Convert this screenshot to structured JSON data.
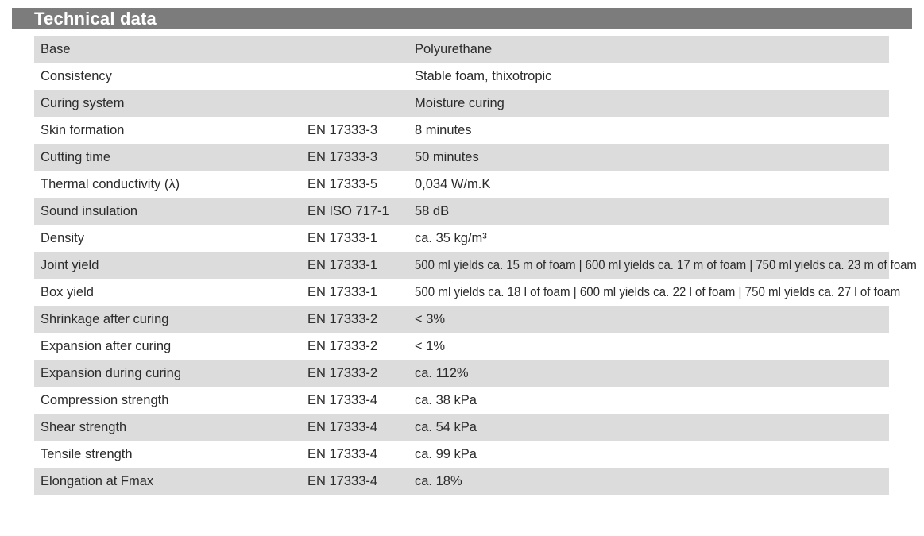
{
  "header": {
    "title": "Technical data"
  },
  "table": {
    "rows": [
      {
        "property": "Base",
        "norm": "",
        "value": "Polyurethane"
      },
      {
        "property": "Consistency",
        "norm": "",
        "value": "Stable foam, thixotropic"
      },
      {
        "property": "Curing system",
        "norm": "",
        "value": "Moisture curing"
      },
      {
        "property": "Skin formation",
        "norm": "EN 17333-3",
        "value": "8 minutes"
      },
      {
        "property": "Cutting time",
        "norm": "EN 17333-3",
        "value": "50 minutes"
      },
      {
        "property": "Thermal conductivity (λ)",
        "norm": "EN 17333-5",
        "value": "0,034 W/m.K"
      },
      {
        "property": "Sound insulation",
        "norm": "EN ISO 717-1",
        "value": "58 dB"
      },
      {
        "property": "Density",
        "norm": "EN 17333-1",
        "value": "ca. 35 kg/m³"
      },
      {
        "property": "Joint yield",
        "norm": "EN 17333-1",
        "value": "500 ml yields ca. 15 m of foam | 600 ml yields ca. 17 m of foam | 750 ml yields ca. 23 m of foam"
      },
      {
        "property": "Box yield",
        "norm": "EN 17333-1",
        "value": "500 ml yields ca. 18 l of foam | 600 ml yields ca. 22 l of foam | 750 ml yields ca. 27 l of foam"
      },
      {
        "property": "Shrinkage after curing",
        "norm": "EN 17333-2",
        "value": "< 3%"
      },
      {
        "property": "Expansion after curing",
        "norm": "EN 17333-2",
        "value": "< 1%"
      },
      {
        "property": "Expansion during curing",
        "norm": "EN 17333-2",
        "value": "ca. 112%"
      },
      {
        "property": "Compression strength",
        "norm": "EN 17333-4",
        "value": "ca. 38 kPa"
      },
      {
        "property": "Shear strength",
        "norm": "EN 17333-4",
        "value": "ca. 54 kPa"
      },
      {
        "property": "Tensile strength",
        "norm": "EN 17333-4",
        "value": "ca. 99 kPa"
      },
      {
        "property": "Elongation at Fmax",
        "norm": "EN 17333-4",
        "value": "ca. 18%"
      }
    ]
  }
}
